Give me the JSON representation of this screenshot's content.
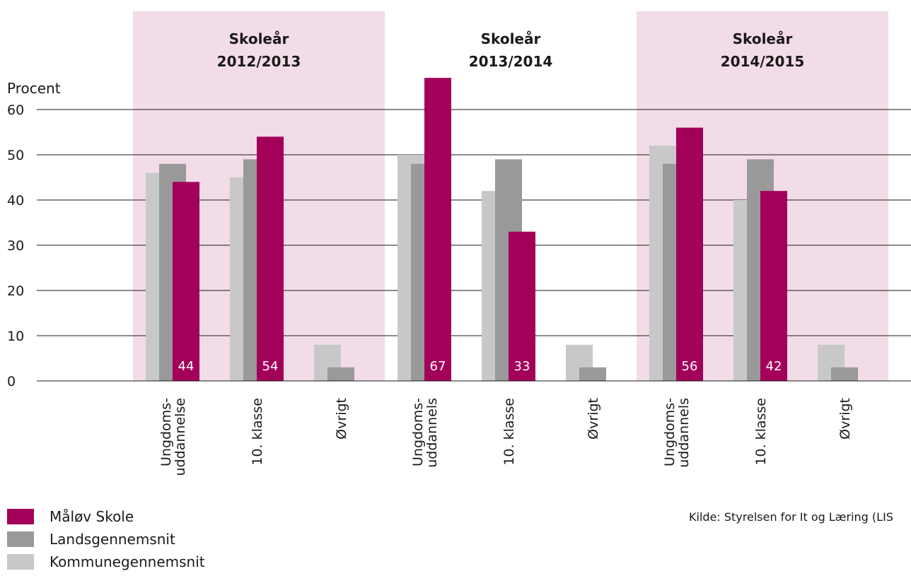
{
  "colors": {
    "school": "#a3005a",
    "national": "#999999",
    "municipal": "#c8c8c8",
    "band": "#f1dce8",
    "axis": "#1a1a1a",
    "value_label": "#ffffff"
  },
  "chart_data": {
    "type": "bar",
    "ylabel": "Procent",
    "ylim": [
      0,
      60
    ],
    "yticks": [
      0,
      10,
      20,
      30,
      40,
      50,
      60
    ],
    "grid": true,
    "groups": [
      {
        "title_line1": "Skoleår",
        "title_line2": "2012/2013",
        "shaded": true,
        "categories": [
          {
            "label": [
              "Ungdoms-",
              "uddannelse"
            ],
            "municipal": 46,
            "national": 48,
            "school": 44,
            "school_label": "44"
          },
          {
            "label": [
              "10. klasse"
            ],
            "municipal": 45,
            "national": 49,
            "school": 54,
            "school_label": "54"
          },
          {
            "label": [
              "Øvrigt"
            ],
            "municipal": 8,
            "national": 3
          }
        ]
      },
      {
        "title_line1": "Skoleår",
        "title_line2": "2013/2014",
        "shaded": false,
        "categories": [
          {
            "label": [
              "Ungdoms-",
              "uddannels"
            ],
            "municipal": 50,
            "national": 48,
            "school": 67,
            "school_label": "67"
          },
          {
            "label": [
              "10. klasse"
            ],
            "municipal": 42,
            "national": 49,
            "school": 33,
            "school_label": "33"
          },
          {
            "label": [
              "Øvrigt"
            ],
            "municipal": 8,
            "national": 3
          }
        ]
      },
      {
        "title_line1": "Skoleår",
        "title_line2": "2014/2015",
        "shaded": true,
        "categories": [
          {
            "label": [
              "Ungdoms-",
              "uddannels"
            ],
            "municipal": 52,
            "national": 48,
            "school": 56,
            "school_label": "56"
          },
          {
            "label": [
              "10. klasse"
            ],
            "municipal": 40,
            "national": 49,
            "school": 42,
            "school_label": "42"
          },
          {
            "label": [
              "Øvrigt"
            ],
            "municipal": 8,
            "national": 3
          }
        ]
      }
    ],
    "legend": [
      {
        "key": "school",
        "label": "Måløv Skole"
      },
      {
        "key": "national",
        "label": "Landsgennemsnit"
      },
      {
        "key": "municipal",
        "label": "Kommunegennemsnit"
      }
    ],
    "source": "Kilde: Styrelsen for It og Læring (LIS"
  }
}
